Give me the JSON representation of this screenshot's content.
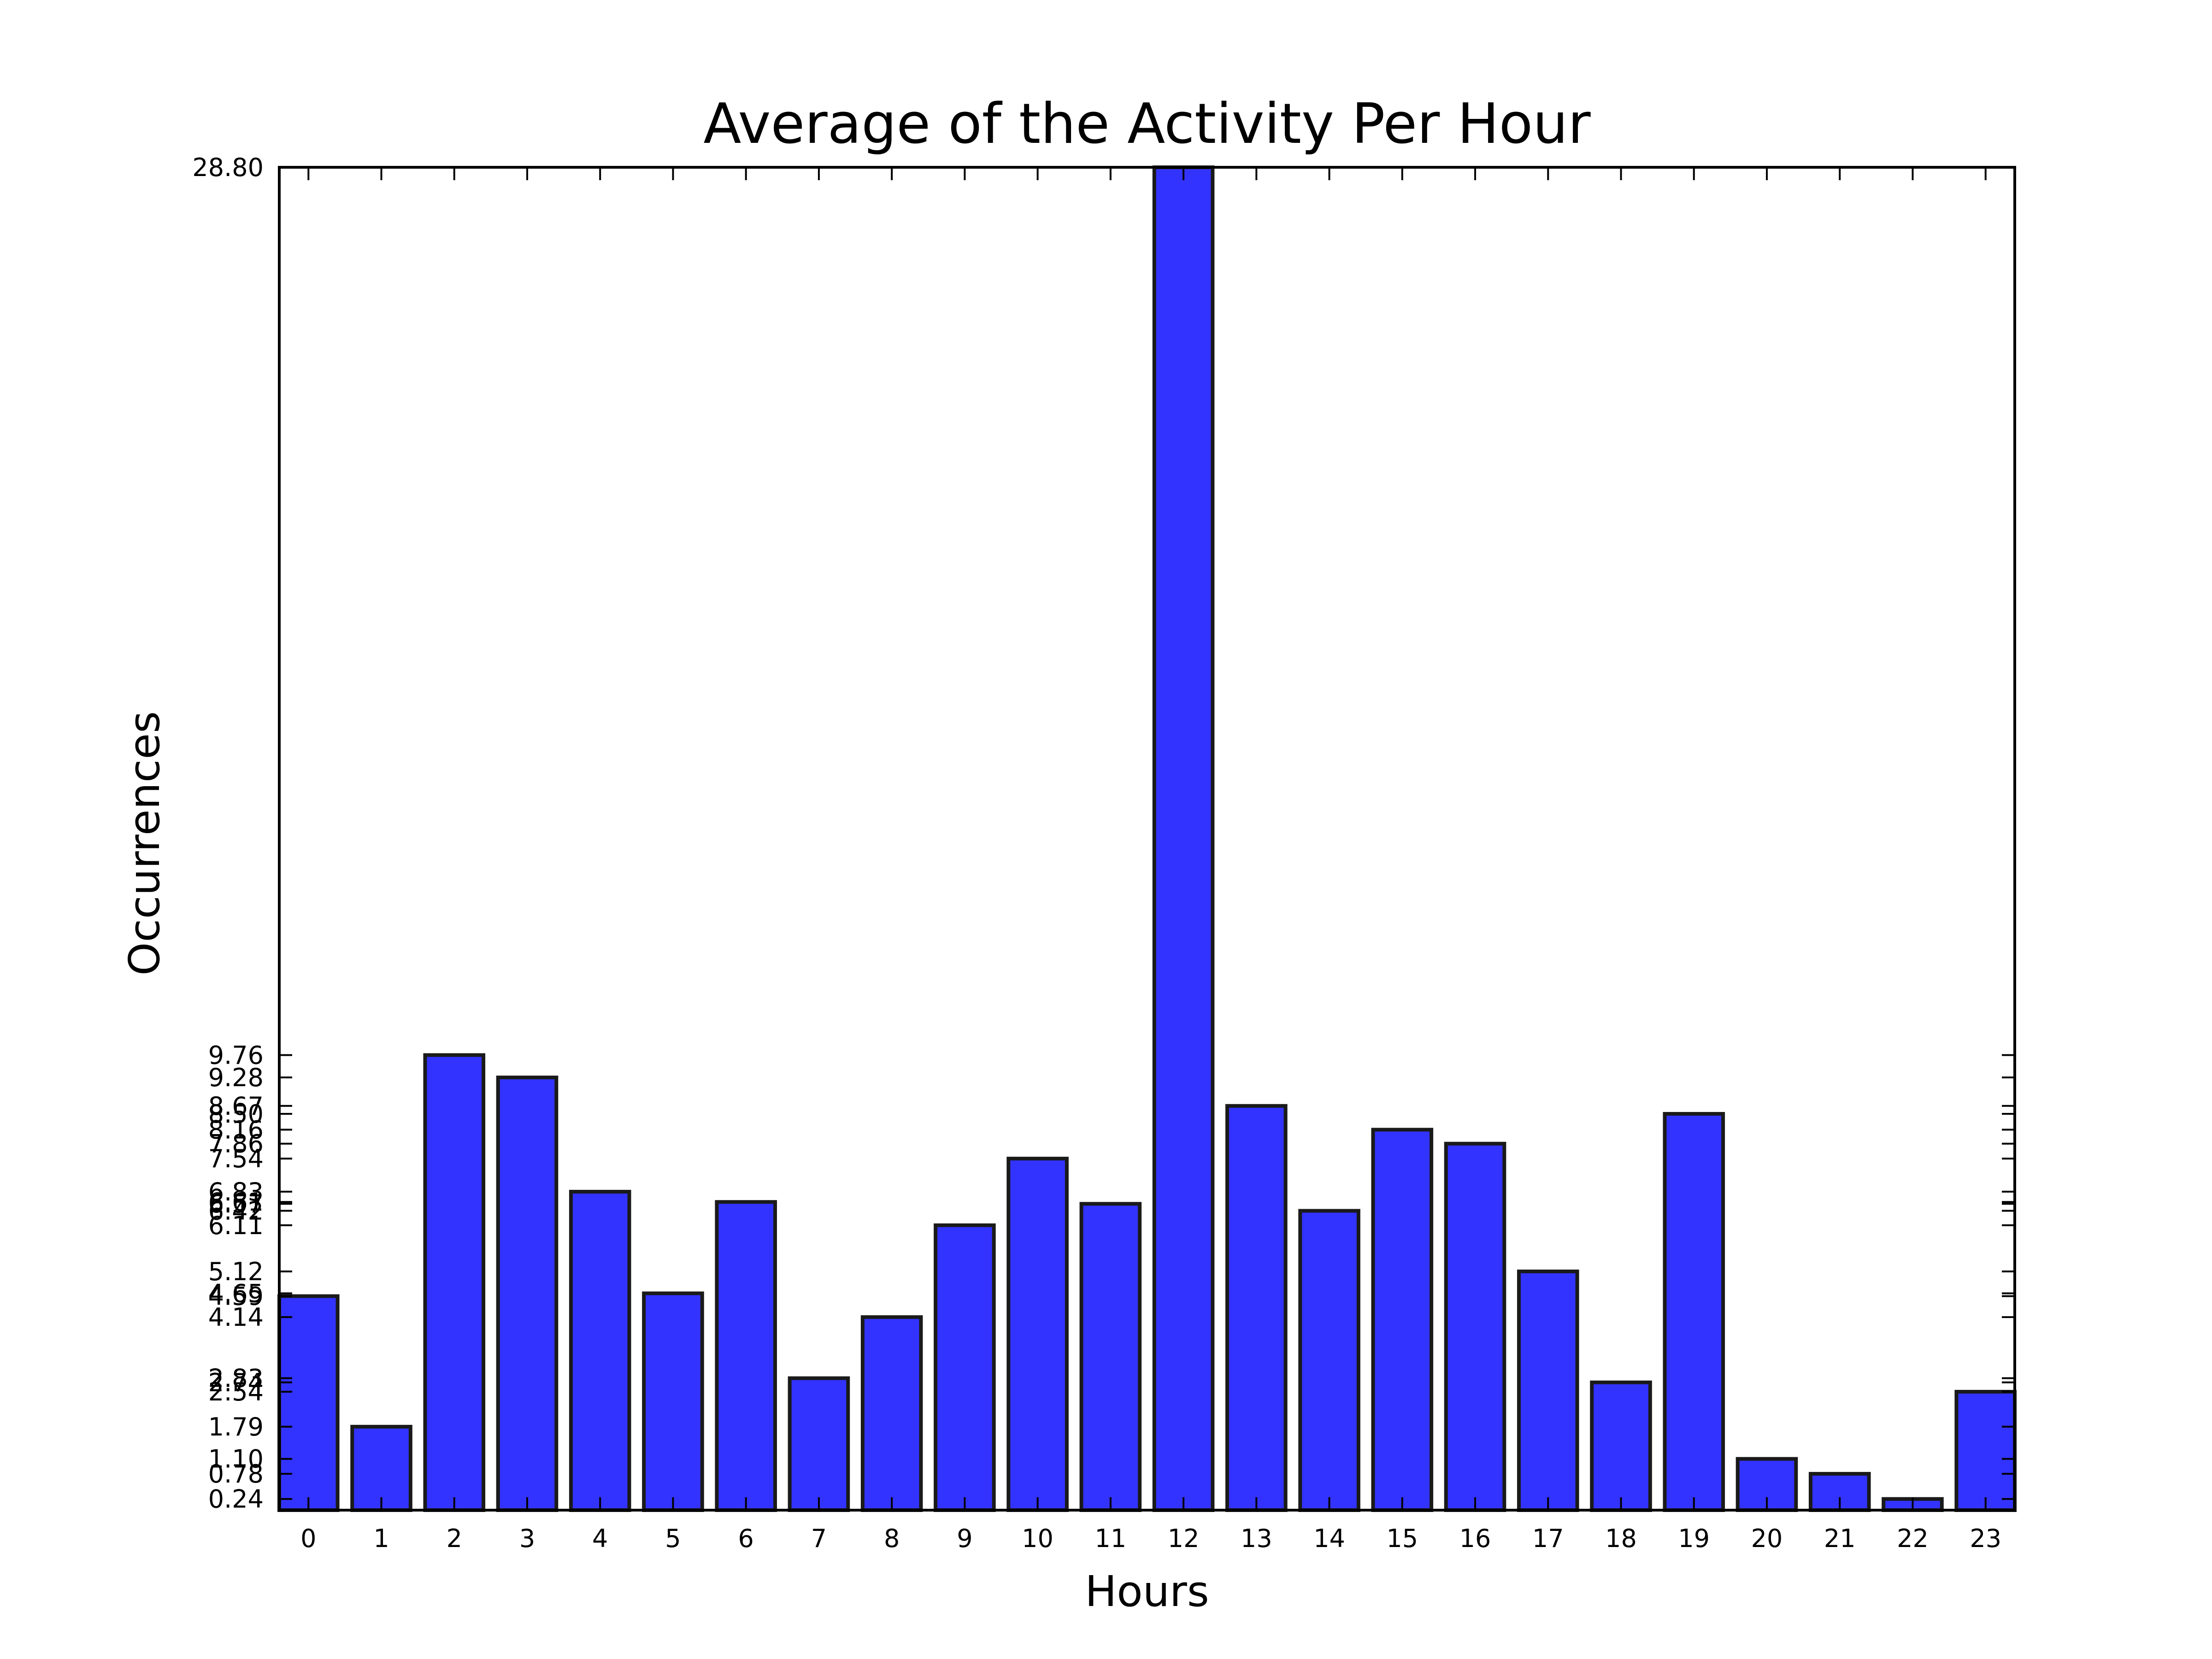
{
  "chart_data": {
    "type": "bar",
    "title": "Average of the Activity Per Hour",
    "xlabel": "Hours",
    "ylabel": "Occurrences",
    "categories": [
      "0",
      "1",
      "2",
      "3",
      "4",
      "5",
      "6",
      "7",
      "8",
      "9",
      "10",
      "11",
      "12",
      "13",
      "14",
      "15",
      "16",
      "17",
      "18",
      "19",
      "20",
      "21",
      "22",
      "23"
    ],
    "values": [
      4.59,
      1.79,
      9.76,
      9.28,
      6.83,
      4.65,
      6.61,
      2.83,
      4.14,
      6.11,
      7.54,
      6.57,
      28.8,
      8.67,
      6.42,
      8.16,
      7.86,
      5.12,
      2.74,
      8.5,
      1.1,
      0.78,
      0.24,
      2.54
    ],
    "ytick_labels": [
      "0.24",
      "0.78",
      "1.10",
      "1.79",
      "2.54",
      "2.74",
      "2.83",
      "4.14",
      "4.59",
      "4.65",
      "5.12",
      "6.11",
      "6.42",
      "6.57",
      "6.61",
      "6.83",
      "7.54",
      "7.86",
      "8.16",
      "8.50",
      "8.67",
      "9.28",
      "9.76",
      "28.80"
    ],
    "ylim": [
      0,
      28.8
    ],
    "xlim": [
      -0.4,
      23.4
    ],
    "bar_color": "#3333ff",
    "edge_color": "#1a1a1a",
    "grid": false,
    "legend": "none"
  }
}
